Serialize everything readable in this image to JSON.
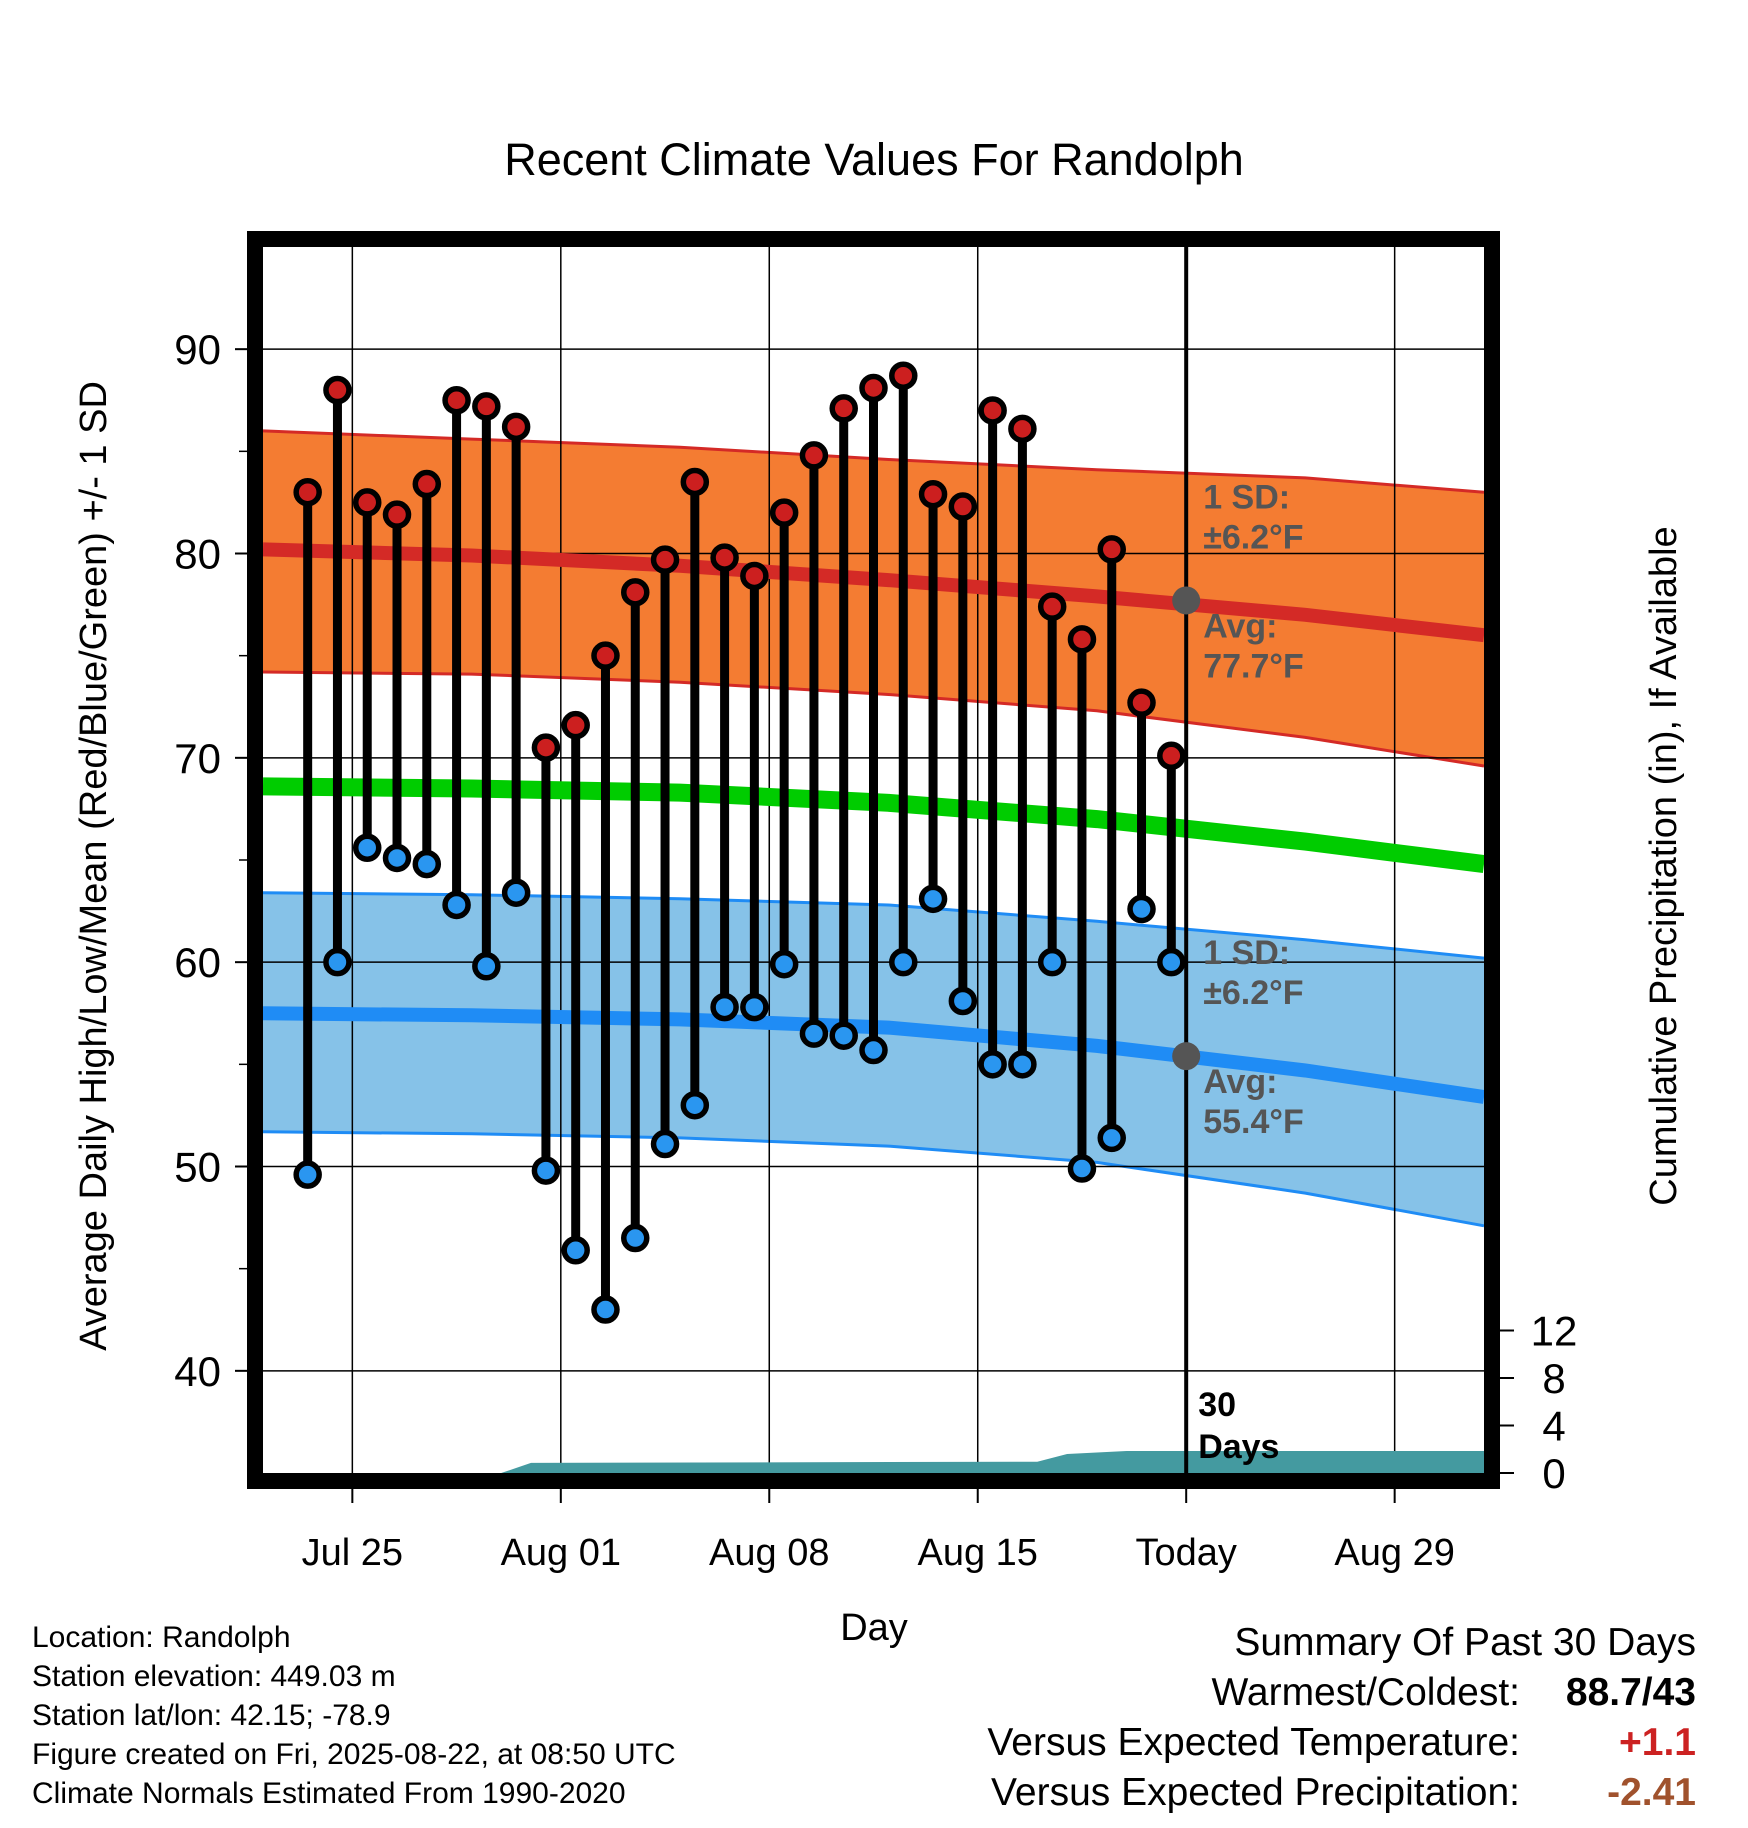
{
  "chart_data": {
    "type": "line",
    "title": "Recent Climate Values For Randolph",
    "xlabel": "Day",
    "ylabel": "Average Daily High/Low/Mean (Red/Blue/Green) +/- 1 SD",
    "y2label": "Cumulative Precipitation (in), If Available",
    "ylim": [
      35,
      95
    ],
    "y2lim": [
      0,
      16
    ],
    "y_ticks": [
      40,
      50,
      60,
      70,
      80,
      90
    ],
    "y2_ticks": [
      0,
      4,
      8,
      12
    ],
    "x_range": [
      "2025-07-22",
      "2025-09-01"
    ],
    "x_ticks": [
      {
        "date": "2025-07-25",
        "label": "Jul 25"
      },
      {
        "date": "2025-08-01",
        "label": "Aug 01"
      },
      {
        "date": "2025-08-08",
        "label": "Aug 08"
      },
      {
        "date": "2025-08-15",
        "label": "Aug 15"
      },
      {
        "date": "2025-08-22",
        "label": "Today"
      },
      {
        "date": "2025-08-29",
        "label": "Aug 29"
      }
    ],
    "today": "2025-08-22",
    "observations": {
      "dates": [
        "2025-07-23",
        "2025-07-24",
        "2025-07-25",
        "2025-07-26",
        "2025-07-27",
        "2025-07-28",
        "2025-07-29",
        "2025-07-30",
        "2025-07-31",
        "2025-08-01",
        "2025-08-02",
        "2025-08-03",
        "2025-08-04",
        "2025-08-05",
        "2025-08-06",
        "2025-08-07",
        "2025-08-08",
        "2025-08-09",
        "2025-08-10",
        "2025-08-11",
        "2025-08-12",
        "2025-08-13",
        "2025-08-14",
        "2025-08-15",
        "2025-08-16",
        "2025-08-17",
        "2025-08-18",
        "2025-08-19",
        "2025-08-20",
        "2025-08-21"
      ],
      "high": [
        83.0,
        88.0,
        82.5,
        81.9,
        83.4,
        87.5,
        87.2,
        86.2,
        70.5,
        71.6,
        75.0,
        78.1,
        79.7,
        83.5,
        79.8,
        78.9,
        82.0,
        84.8,
        87.1,
        88.1,
        88.7,
        82.9,
        82.3,
        87.0,
        86.1,
        77.4,
        75.8,
        80.2,
        72.7,
        70.1
      ],
      "low": [
        49.6,
        60.0,
        65.6,
        65.1,
        64.8,
        62.8,
        59.8,
        63.4,
        49.8,
        45.9,
        43.0,
        46.5,
        51.1,
        53.0,
        57.8,
        57.8,
        59.9,
        56.5,
        56.4,
        55.7,
        60.0,
        63.1,
        58.1,
        55.0,
        55.0,
        60.0,
        49.9,
        51.4,
        62.6,
        60.0
      ]
    },
    "normals": {
      "dates": [
        "2025-07-22",
        "2025-07-29",
        "2025-08-05",
        "2025-08-12",
        "2025-08-19",
        "2025-08-26",
        "2025-09-01"
      ],
      "high_avg": [
        80.2,
        79.9,
        79.4,
        78.7,
        77.9,
        77.0,
        76.0
      ],
      "high_upper": [
        86.0,
        85.6,
        85.2,
        84.6,
        84.1,
        83.7,
        83.0
      ],
      "high_lower": [
        74.2,
        74.1,
        73.7,
        73.1,
        72.3,
        71.0,
        69.6
      ],
      "low_avg": [
        57.5,
        57.4,
        57.2,
        56.8,
        55.9,
        54.7,
        53.4
      ],
      "low_upper": [
        63.4,
        63.3,
        63.1,
        62.8,
        62.0,
        61.1,
        60.2
      ],
      "low_lower": [
        51.7,
        51.6,
        51.4,
        51.0,
        50.2,
        48.7,
        47.1
      ],
      "mean": [
        68.6,
        68.5,
        68.3,
        67.8,
        67.0,
        65.9,
        64.8
      ]
    },
    "precipitation_cumulative": {
      "dates": [
        "2025-07-22",
        "2025-07-30",
        "2025-07-31",
        "2025-08-17",
        "2025-08-18",
        "2025-08-20",
        "2025-09-01"
      ],
      "values": [
        0.0,
        0.0,
        0.85,
        0.95,
        1.6,
        1.85,
        1.85
      ]
    },
    "annotations": {
      "high_sd_label": "1 SD:",
      "high_sd_value": "±6.2°F",
      "high_avg_label": "Avg:",
      "high_avg_value": "77.7°F",
      "low_sd_label": "1 SD:",
      "low_sd_value": "±6.2°F",
      "low_avg_label": "Avg:",
      "low_avg_value": "55.4°F",
      "days_label_line1": "30",
      "days_label_line2": "Days",
      "today_high_avg": 77.7,
      "today_low_avg": 55.4
    },
    "colors": {
      "high_band": "#f47c32",
      "high_line": "#d42a26",
      "low_band": "#86c2e8",
      "low_line": "#1f8cf5",
      "mean_line": "#00cc00",
      "precip": "#449aa0",
      "high_marker": "#cc1f1f",
      "low_marker": "#2a96f0",
      "annotation_text": "#555555"
    }
  },
  "info": {
    "location": "Location: Randolph",
    "elevation": "Station elevation: 449.03 m",
    "latlon": "Station lat/lon: 42.15; -78.9",
    "created": "Figure created on Fri, 2025-08-22, at 08:50 UTC",
    "normals": "Climate Normals Estimated From 1990-2020"
  },
  "summary": {
    "title": "Summary Of Past 30 Days",
    "warmest_coldest_label": "Warmest/Coldest:",
    "warmest_coldest_value": "88.7/43",
    "temp_label": "Versus Expected Temperature:",
    "temp_value": "+1.1",
    "temp_color": "#cc2222",
    "precip_label": "Versus Expected Precipitation:",
    "precip_value": "-2.41",
    "precip_color": "#a0522d"
  }
}
